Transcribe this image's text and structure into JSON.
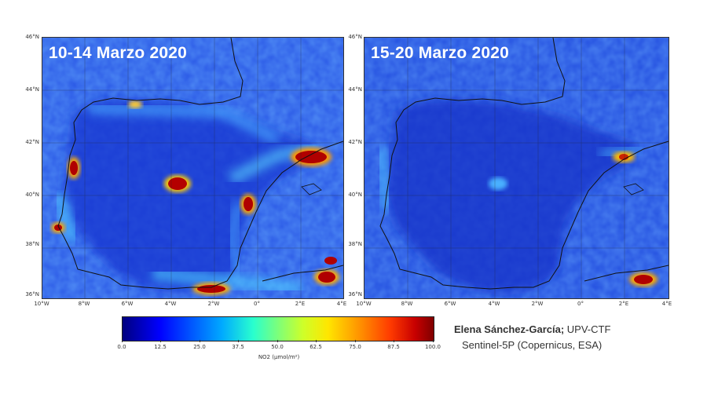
{
  "panels": [
    {
      "title": "10-14 Marzo 2020"
    },
    {
      "title": "15-20 Marzo 2020"
    }
  ],
  "axes": {
    "lat_ticks": [
      "46°N",
      "44°N",
      "42°N",
      "40°N",
      "38°N",
      "36°N"
    ],
    "lon_ticks": [
      "10°W",
      "8°W",
      "6°W",
      "4°W",
      "2°W",
      "0°",
      "2°E",
      "4°E"
    ]
  },
  "colorbar": {
    "ticks": [
      "0.0",
      "12.5",
      "25.0",
      "37.5",
      "50.0",
      "62.5",
      "75.0",
      "87.5",
      "100.0"
    ],
    "label": "NO2 (µmol/m²)",
    "range": [
      0,
      100
    ],
    "colormap": "jet"
  },
  "credit": {
    "author": "Elena Sánchez-García;",
    "affiliation": "UPV-CTF",
    "source": "Sentinel-5P (Copernicus, ESA)"
  },
  "colors": {
    "ocean": "#2b55e0",
    "land": "#1a3ad6",
    "hotspot": "#b00000",
    "title": "#ffffff"
  }
}
